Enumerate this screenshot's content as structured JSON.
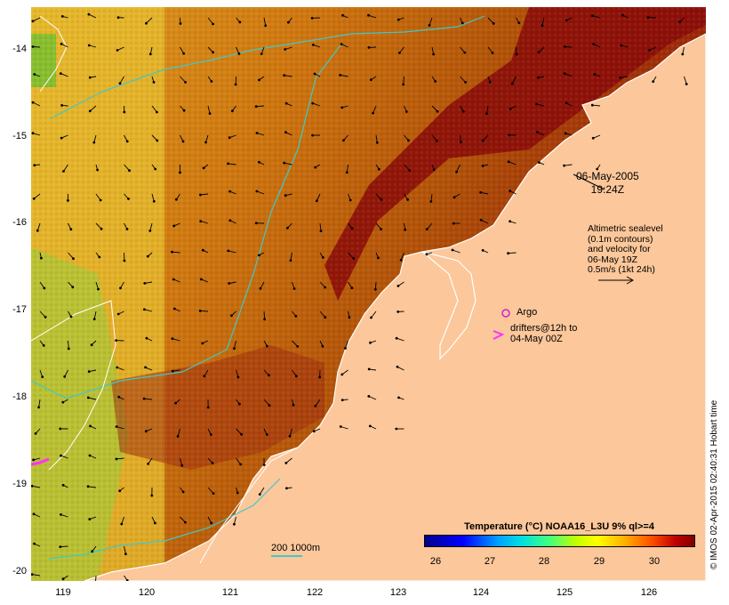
{
  "map": {
    "y_axis_labels": [
      "-14",
      "-15",
      "-16",
      "-17",
      "-18",
      "-19",
      "-20"
    ],
    "x_axis_labels": [
      "119",
      "120",
      "121",
      "122",
      "123",
      "124",
      "125",
      "126"
    ],
    "lat_range": [
      -20.1,
      -13.55
    ],
    "lon_range": [
      118.6,
      126.7
    ],
    "colors": {
      "land": "#fcc79a",
      "coast": "#ffffff",
      "contour_200m": "#40c8c8",
      "contour_1000m": "#ffffff",
      "argo": "#d020d0",
      "drifter": "#ff30ff"
    }
  },
  "annotations": {
    "date_line1": "06-May-2005",
    "date_line2": "19:24Z",
    "alt_line1": "Altimetric sealevel",
    "alt_line2": "(0.1m contours)",
    "alt_line3": "and velocity for",
    "alt_line4": "06-May 19Z",
    "alt_line5": "0.5m/s (1kt 24h)",
    "argo_label": "Argo",
    "drifter_line1": "drifters@12h to",
    "drifter_line2": "04-May 00Z",
    "scale_label": "200  1000m"
  },
  "legend": {
    "title": "Temperature (°C) NOAA16_L3U 9% ql>=4",
    "ticks": [
      "26",
      "27",
      "28",
      "29",
      "30"
    ]
  },
  "credit": "© IMOS 02-Apr-2015 02:40:31 Hobart time"
}
